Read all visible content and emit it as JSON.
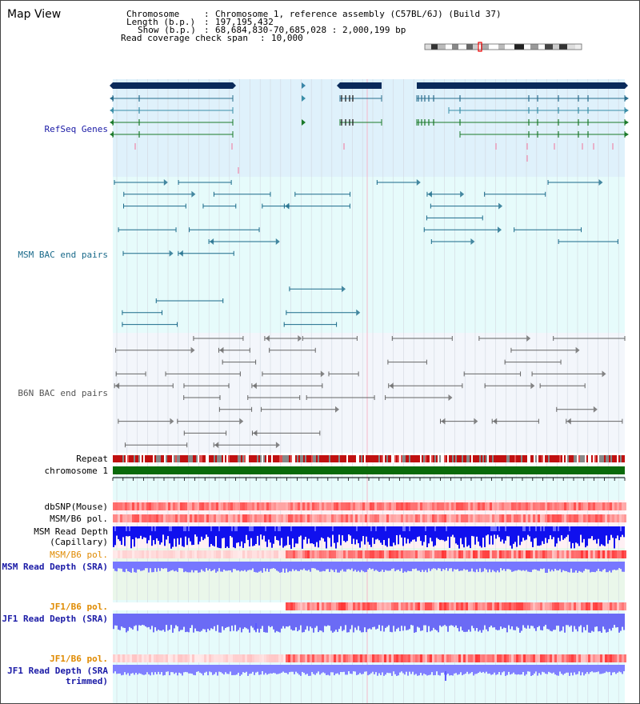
{
  "header": {
    "title": "Map View",
    "chromosome_label": "Chromosome",
    "chromosome_value": "Chromosome 1, reference assembly (C57BL/6J) (Build 37)",
    "length_label": "Length (b.p.)",
    "length_value": "197,195,432",
    "show_label": "Show (b.p.)",
    "show_value": "68,684,830-70,685,028 : 2,000,199 bp",
    "coverage_label": "Read coverage check span",
    "coverage_value": "10,000"
  },
  "tracks": {
    "refseq": {
      "label": "RefSeq Genes",
      "color": "#1a1aa6"
    },
    "msm_bac": {
      "label": "MSM BAC end pairs",
      "color": "#1a6a8a"
    },
    "b6n_bac": {
      "label": "B6N BAC end pairs",
      "color": "#555555"
    },
    "repeat": {
      "label": "Repeat"
    },
    "chromosome": {
      "label": "chromosome 1"
    },
    "dbsnp": {
      "label": "dbSNP(Mouse)"
    },
    "msm_b6_pol": {
      "label": "MSM/B6 pol."
    },
    "msm_depth_cap": {
      "label": "MSM Read Depth (Capillary)"
    },
    "msm_b6_pol_sra": {
      "label": "MSM/B6 pol.",
      "color": "#e08a00"
    },
    "msm_depth_sra": {
      "label": "MSM Read Depth (SRA)",
      "color": "#1a1aa6"
    },
    "jf1_b6_pol": {
      "label": "JF1/B6 pol.",
      "color": "#e08a00"
    },
    "jf1_depth_sra": {
      "label": "JF1 Read Depth (SRA)",
      "color": "#1a1aa6"
    },
    "jf1_b6_pol_trim": {
      "label": "JF1/B6 pol.",
      "color": "#e08a00"
    },
    "jf1_depth_trim": {
      "label": "JF1 Read Depth (SRA trimmed)",
      "color": "#1a1aa6"
    }
  },
  "axis": {
    "ticks": [
      "68800000",
      "69200000",
      "69600000",
      "70000000",
      "70400000"
    ]
  },
  "colors": {
    "gene_dark": "#0a2a5a",
    "chromosome_bar": "#0a6a0a",
    "repeat_red": "#c01010",
    "depth_blue": "#0000ff",
    "depth_light": "#7777ff",
    "snp_red": "#ee4444"
  }
}
